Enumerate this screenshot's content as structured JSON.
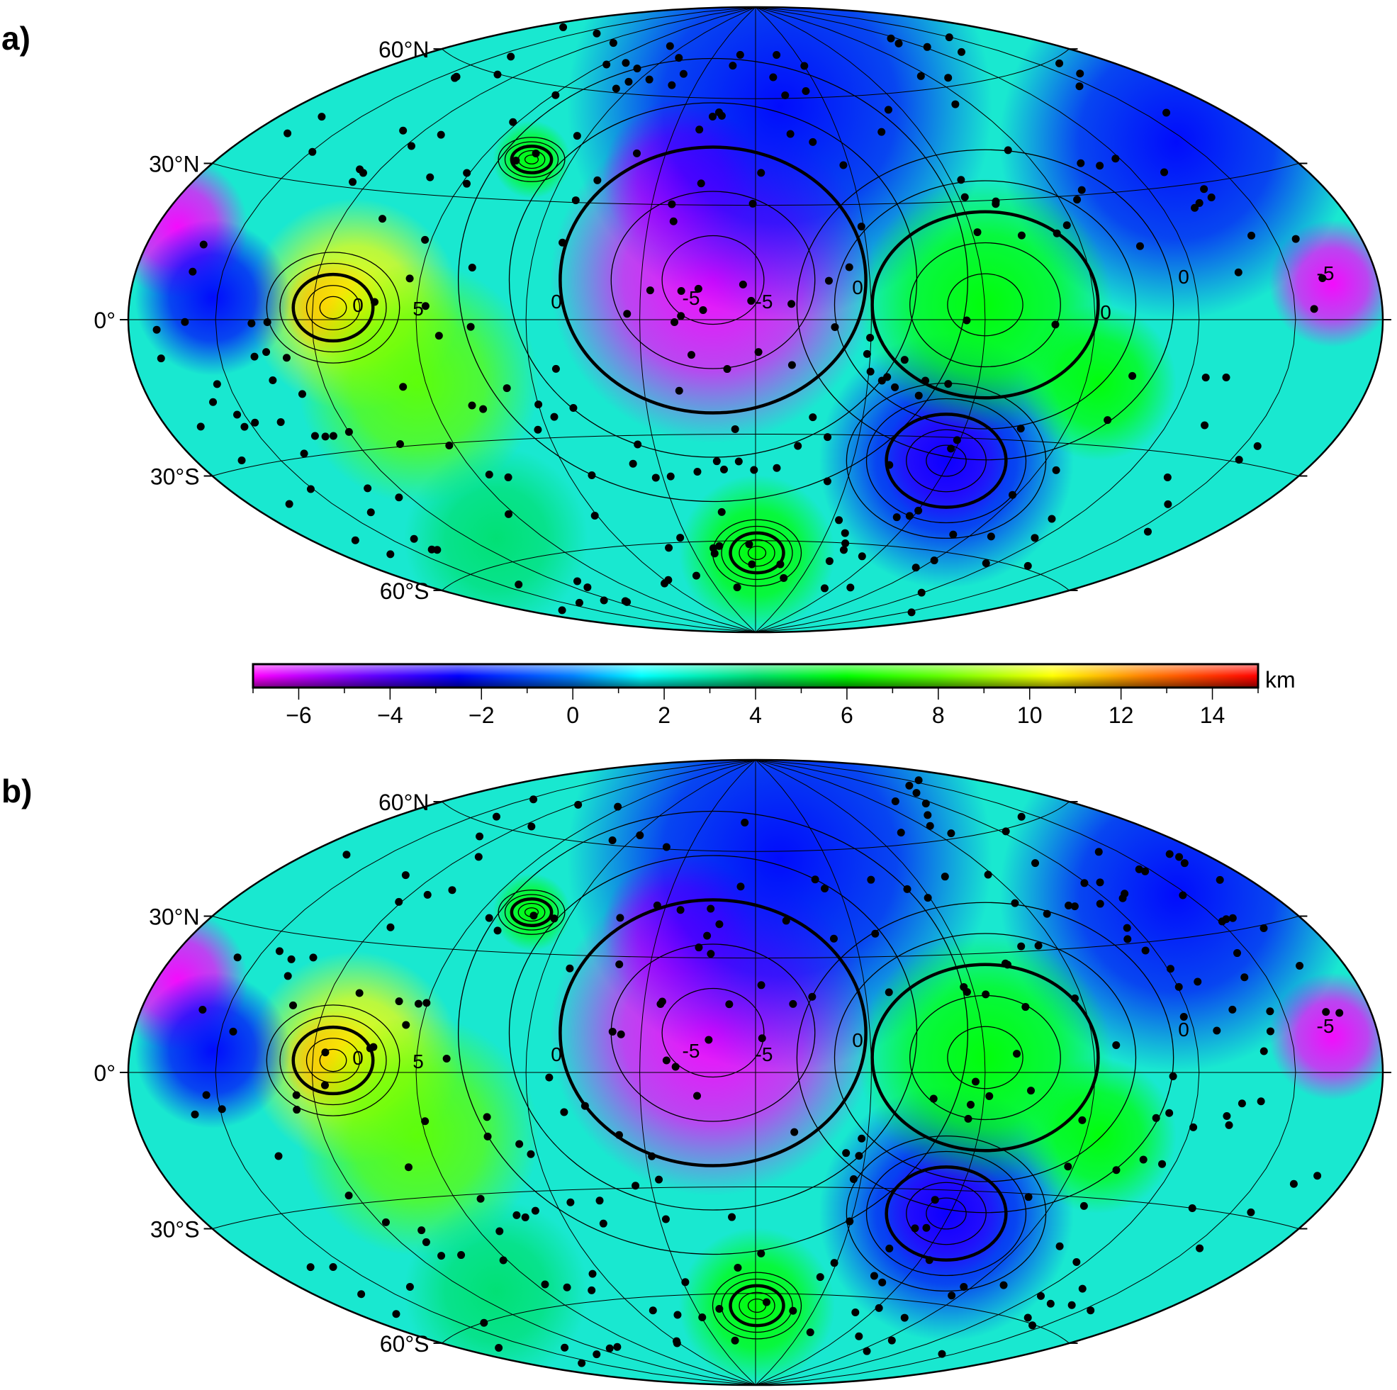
{
  "panels": [
    {
      "label": "a)",
      "contour_labels": [
        "0",
        "0",
        "0",
        "0",
        "5",
        "-5",
        "-5",
        "-5",
        "0"
      ]
    },
    {
      "label": "b)",
      "contour_labels": [
        "0",
        "0",
        "0",
        "0",
        "5",
        "-5",
        "-5",
        "-5"
      ]
    }
  ],
  "lat_labels": [
    "60°N",
    "30°N",
    "0°",
    "30°S",
    "60°S"
  ],
  "colorbar": {
    "unit": "km",
    "min": -7,
    "max": 15,
    "tick_labels": [
      "−6",
      "−4",
      "−2",
      "0",
      "2",
      "4",
      "6",
      "8",
      "10",
      "12",
      "14"
    ],
    "tick_values": [
      -6,
      -4,
      -2,
      0,
      2,
      4,
      6,
      8,
      10,
      12,
      14
    ],
    "colors": [
      {
        "v": -7,
        "c": "#ff00ff"
      },
      {
        "v": -4.5,
        "c": "#6a00ff"
      },
      {
        "v": -2.5,
        "c": "#0000ff"
      },
      {
        "v": 0,
        "c": "#0080ff"
      },
      {
        "v": 1.5,
        "c": "#00ffff"
      },
      {
        "v": 4,
        "c": "#00e070"
      },
      {
        "v": 6,
        "c": "#00ff00"
      },
      {
        "v": 8,
        "c": "#60ff00"
      },
      {
        "v": 10.5,
        "c": "#ffff00"
      },
      {
        "v": 12.5,
        "c": "#ff8000"
      },
      {
        "v": 15,
        "c": "#ff0000"
      }
    ]
  }
}
